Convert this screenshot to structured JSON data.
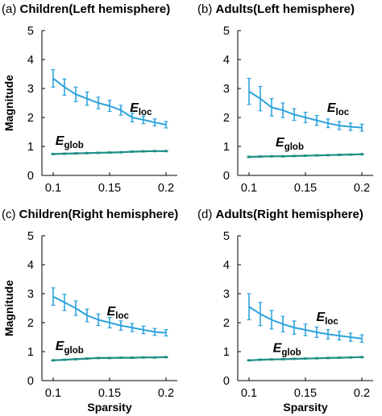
{
  "colors": {
    "eloc": "#2ea3dc",
    "eglob": "#1f8f85"
  },
  "axis": {
    "xlabel": "Sparsity",
    "ylabel": "Magnitude"
  },
  "chart_data": [
    {
      "type": "line",
      "panel": "(a)",
      "title": "Children(Left hemisphere)",
      "x": [
        0.1,
        0.11,
        0.12,
        0.13,
        0.14,
        0.15,
        0.16,
        0.17,
        0.18,
        0.19,
        0.2
      ],
      "xlim": [
        0.09,
        0.21
      ],
      "ylim": [
        0,
        5
      ],
      "xticks": [
        "0.1",
        "0.15",
        "0.2"
      ],
      "yticks": [
        "0",
        "1",
        "2",
        "3",
        "4",
        "5"
      ],
      "series": [
        {
          "name": "E",
          "sub": "loc",
          "values": [
            3.35,
            3.05,
            2.8,
            2.65,
            2.5,
            2.4,
            2.25,
            2.0,
            1.92,
            1.83,
            1.75
          ],
          "err": [
            0.3,
            0.28,
            0.25,
            0.23,
            0.2,
            0.19,
            0.17,
            0.15,
            0.13,
            0.12,
            0.11
          ]
        },
        {
          "name": "E",
          "sub": "glob",
          "values": [
            0.74,
            0.75,
            0.76,
            0.77,
            0.78,
            0.79,
            0.8,
            0.82,
            0.83,
            0.84,
            0.84
          ],
          "err": [
            0.02,
            0.02,
            0.02,
            0.02,
            0.02,
            0.02,
            0.02,
            0.02,
            0.02,
            0.02,
            0.02
          ]
        }
      ]
    },
    {
      "type": "line",
      "panel": "(b)",
      "title": "Adults(Left hemisphere)",
      "x": [
        0.1,
        0.11,
        0.12,
        0.13,
        0.14,
        0.15,
        0.16,
        0.17,
        0.18,
        0.19,
        0.2
      ],
      "xlim": [
        0.09,
        0.21
      ],
      "ylim": [
        0,
        5
      ],
      "xticks": [
        "0.1",
        "0.15",
        "0.2"
      ],
      "yticks": [
        "0",
        "1",
        "2",
        "3",
        "4",
        "5"
      ],
      "series": [
        {
          "name": "E",
          "sub": "loc",
          "values": [
            2.9,
            2.65,
            2.35,
            2.25,
            2.1,
            2.0,
            1.9,
            1.8,
            1.72,
            1.68,
            1.65
          ],
          "err": [
            0.45,
            0.42,
            0.3,
            0.25,
            0.2,
            0.18,
            0.17,
            0.15,
            0.14,
            0.13,
            0.12
          ]
        },
        {
          "name": "E",
          "sub": "glob",
          "values": [
            0.64,
            0.65,
            0.66,
            0.66,
            0.67,
            0.68,
            0.69,
            0.7,
            0.71,
            0.72,
            0.73
          ],
          "err": [
            0.02,
            0.02,
            0.02,
            0.02,
            0.02,
            0.02,
            0.02,
            0.02,
            0.02,
            0.02,
            0.02
          ]
        }
      ]
    },
    {
      "type": "line",
      "panel": "(c)",
      "title": "Children(Right hemisphere)",
      "x": [
        0.1,
        0.11,
        0.12,
        0.13,
        0.14,
        0.15,
        0.16,
        0.17,
        0.18,
        0.19,
        0.2
      ],
      "xlim": [
        0.09,
        0.21
      ],
      "ylim": [
        0,
        5
      ],
      "xticks": [
        "0.1",
        "0.15",
        "0.2"
      ],
      "yticks": [
        "0",
        "1",
        "2",
        "3",
        "4",
        "5"
      ],
      "series": [
        {
          "name": "E",
          "sub": "loc",
          "values": [
            2.9,
            2.7,
            2.5,
            2.25,
            2.1,
            2.0,
            1.9,
            1.83,
            1.75,
            1.68,
            1.65
          ],
          "err": [
            0.3,
            0.28,
            0.25,
            0.22,
            0.2,
            0.18,
            0.16,
            0.14,
            0.13,
            0.12,
            0.11
          ]
        },
        {
          "name": "E",
          "sub": "glob",
          "values": [
            0.7,
            0.72,
            0.74,
            0.76,
            0.78,
            0.78,
            0.79,
            0.79,
            0.8,
            0.8,
            0.81
          ],
          "err": [
            0.02,
            0.02,
            0.02,
            0.02,
            0.02,
            0.02,
            0.02,
            0.02,
            0.02,
            0.02,
            0.02
          ]
        }
      ]
    },
    {
      "type": "line",
      "panel": "(d)",
      "title": "Adults(Right hemisphere)",
      "x": [
        0.1,
        0.11,
        0.12,
        0.13,
        0.14,
        0.15,
        0.16,
        0.17,
        0.18,
        0.19,
        0.2
      ],
      "xlim": [
        0.09,
        0.21
      ],
      "ylim": [
        0,
        5
      ],
      "xticks": [
        "0.1",
        "0.15",
        "0.2"
      ],
      "yticks": [
        "0",
        "1",
        "2",
        "3",
        "4",
        "5"
      ],
      "series": [
        {
          "name": "E",
          "sub": "loc",
          "values": [
            2.55,
            2.3,
            2.1,
            1.95,
            1.83,
            1.75,
            1.67,
            1.6,
            1.55,
            1.5,
            1.45
          ],
          "err": [
            0.45,
            0.4,
            0.32,
            0.27,
            0.23,
            0.2,
            0.18,
            0.16,
            0.15,
            0.14,
            0.13
          ]
        },
        {
          "name": "E",
          "sub": "glob",
          "values": [
            0.7,
            0.72,
            0.73,
            0.74,
            0.75,
            0.76,
            0.77,
            0.78,
            0.79,
            0.8,
            0.81
          ],
          "err": [
            0.02,
            0.02,
            0.02,
            0.02,
            0.02,
            0.02,
            0.02,
            0.02,
            0.02,
            0.02,
            0.02
          ]
        }
      ]
    }
  ]
}
